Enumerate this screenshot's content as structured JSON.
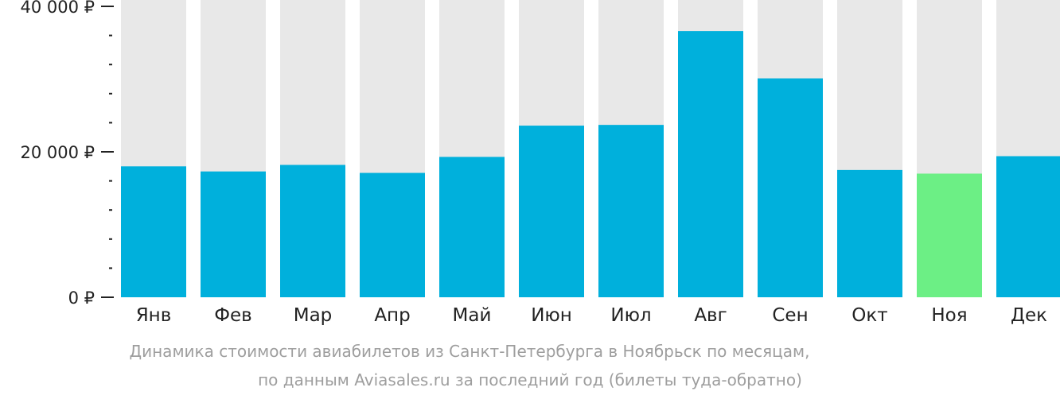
{
  "chart_data": {
    "type": "bar",
    "categories": [
      "Янв",
      "Фев",
      "Мар",
      "Апр",
      "Май",
      "Июн",
      "Июл",
      "Авг",
      "Сен",
      "Окт",
      "Ноя",
      "Дек"
    ],
    "values": [
      18000,
      17300,
      18200,
      17100,
      19300,
      23600,
      23700,
      36600,
      30100,
      17500,
      17000,
      19400
    ],
    "ylim": [
      0,
      40000
    ],
    "y_ticks": [
      {
        "value": 0,
        "label": "0 ₽"
      },
      {
        "value": 20000,
        "label": "20 000 ₽"
      },
      {
        "value": 40000,
        "label": "40 000 ₽"
      }
    ],
    "minor_tick_step": 4000,
    "highlight_index": 10,
    "colors": {
      "bar": "#00b0dc",
      "highlight": "#6cef85",
      "background_bar": "#e8e8e8",
      "axis": "#222222"
    },
    "grid": false
  },
  "caption": {
    "line1": "Динамика стоимости авиабилетов из Санкт-Петербурга в Ноябрьск по месяцам,",
    "line2": "по данным Aviasales.ru за последний год (билеты туда-обратно)"
  }
}
